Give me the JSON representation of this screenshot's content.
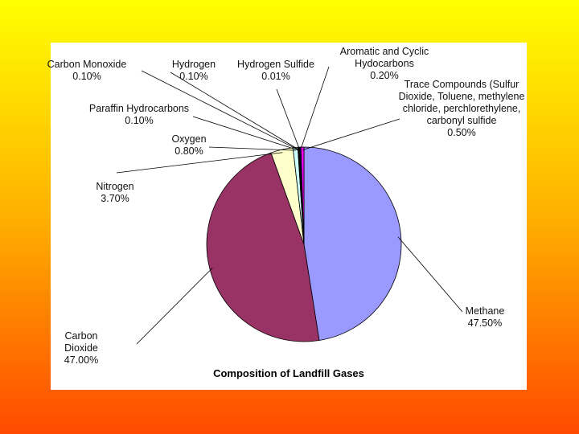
{
  "chart_data": {
    "type": "pie",
    "title": "Composition of Landfill Gases",
    "categories": [
      "Methane",
      "Carbon Dioxide",
      "Nitrogen",
      "Oxygen",
      "Paraffin Hydrocarbons",
      "Carbon Monoxide",
      "Hydrogen",
      "Hydrogen Sulfide",
      "Aromatic and Cyclic Hydocarbons",
      "Trace Compounds (Sulfur Dioxide, Toluene, methylene chloride, perchlorethylene, carbonyl sulfide"
    ],
    "values": [
      47.5,
      47.0,
      3.7,
      0.8,
      0.1,
      0.1,
      0.1,
      0.01,
      0.2,
      0.5
    ],
    "value_labels": [
      "47.50%",
      "47.00%",
      "3.70%",
      "0.80%",
      "0.10%",
      "0.10%",
      "0.10%",
      "0.01%",
      "0.20%",
      "0.50%"
    ],
    "colors": [
      "#9999ff",
      "#993366",
      "#ffffcc",
      "#ccffff",
      "#660066",
      "#ff8080",
      "#0066cc",
      "#ccccff",
      "#000080",
      "#ff00ff"
    ]
  }
}
